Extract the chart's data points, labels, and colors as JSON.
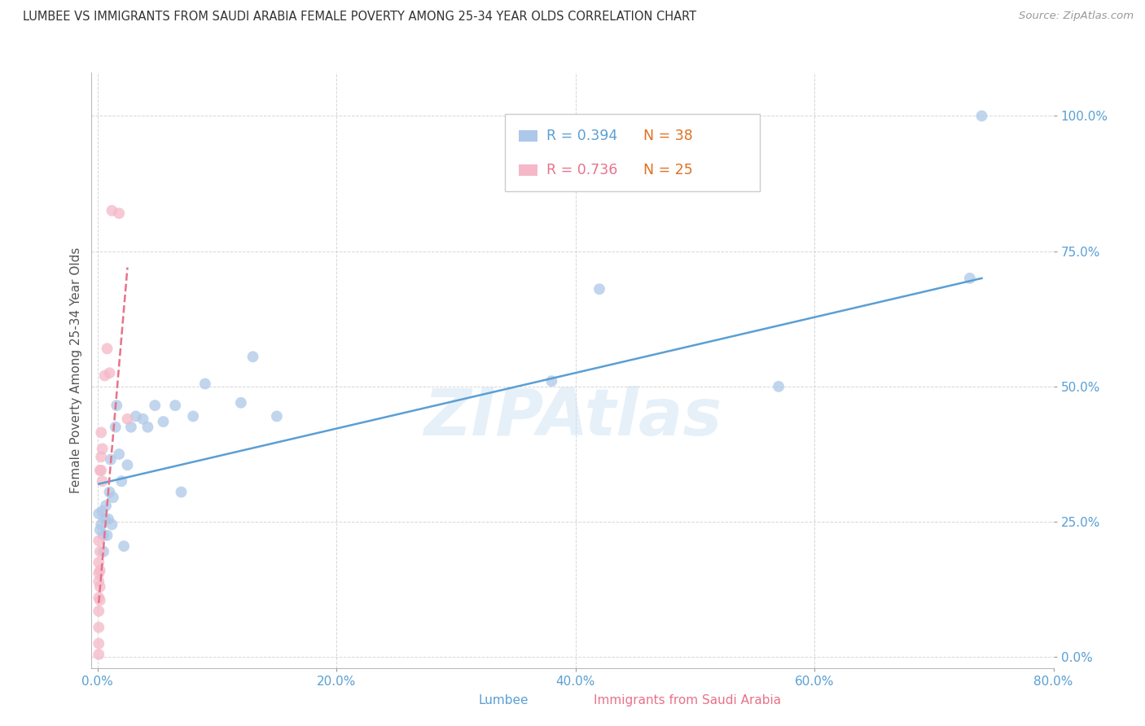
{
  "title": "LUMBEE VS IMMIGRANTS FROM SAUDI ARABIA FEMALE POVERTY AMONG 25-34 YEAR OLDS CORRELATION CHART",
  "source": "Source: ZipAtlas.com",
  "ylabel": "Female Poverty Among 25-34 Year Olds",
  "xlabel_lumbee": "Lumbee",
  "xlabel_saudi": "Immigrants from Saudi Arabia",
  "xlim": [
    -0.005,
    0.8
  ],
  "ylim": [
    -0.02,
    1.08
  ],
  "yticks": [
    0.0,
    0.25,
    0.5,
    0.75,
    1.0
  ],
  "xticks": [
    0.0,
    0.2,
    0.4,
    0.6,
    0.8
  ],
  "lumbee_R": 0.394,
  "lumbee_N": 38,
  "saudi_R": 0.736,
  "saudi_N": 25,
  "lumbee_color": "#adc8e8",
  "saudi_color": "#f5b8c8",
  "lumbee_line_color": "#5a9fd4",
  "saudi_line_color": "#e8728a",
  "lumbee_x": [
    0.001,
    0.002,
    0.003,
    0.004,
    0.005,
    0.005,
    0.006,
    0.007,
    0.008,
    0.009,
    0.01,
    0.011,
    0.012,
    0.013,
    0.015,
    0.016,
    0.018,
    0.02,
    0.022,
    0.025,
    0.028,
    0.032,
    0.038,
    0.042,
    0.048,
    0.055,
    0.065,
    0.07,
    0.08,
    0.09,
    0.12,
    0.13,
    0.15,
    0.38,
    0.42,
    0.57,
    0.73,
    0.74
  ],
  "lumbee_y": [
    0.265,
    0.235,
    0.245,
    0.27,
    0.195,
    0.225,
    0.255,
    0.28,
    0.225,
    0.255,
    0.305,
    0.365,
    0.245,
    0.295,
    0.425,
    0.465,
    0.375,
    0.325,
    0.205,
    0.355,
    0.425,
    0.445,
    0.44,
    0.425,
    0.465,
    0.435,
    0.465,
    0.305,
    0.445,
    0.505,
    0.47,
    0.555,
    0.445,
    0.51,
    0.68,
    0.5,
    0.7,
    1.0
  ],
  "saudi_x": [
    0.001,
    0.001,
    0.001,
    0.001,
    0.001,
    0.001,
    0.001,
    0.001,
    0.001,
    0.002,
    0.002,
    0.002,
    0.002,
    0.002,
    0.003,
    0.003,
    0.003,
    0.004,
    0.004,
    0.006,
    0.008,
    0.01,
    0.012,
    0.018,
    0.025
  ],
  "saudi_y": [
    0.005,
    0.025,
    0.055,
    0.085,
    0.11,
    0.14,
    0.155,
    0.175,
    0.215,
    0.105,
    0.13,
    0.16,
    0.195,
    0.345,
    0.345,
    0.37,
    0.415,
    0.325,
    0.385,
    0.52,
    0.57,
    0.525,
    0.825,
    0.82,
    0.44
  ],
  "lumbee_trendline_x": [
    0.001,
    0.74
  ],
  "lumbee_trendline_y": [
    0.32,
    0.7
  ],
  "saudi_trendline_x": [
    0.001,
    0.025
  ],
  "saudi_trendline_y": [
    0.1,
    0.72
  ]
}
